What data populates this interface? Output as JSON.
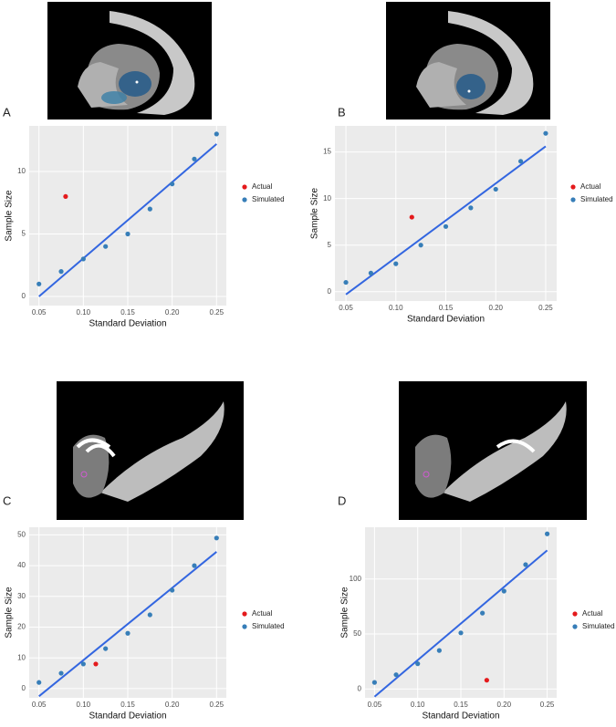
{
  "chart_data": [
    {
      "type": "scatter",
      "panel": "A",
      "x_label": "Standard Deviation",
      "y_label": "Sample Size",
      "xlim": [
        0.039,
        0.261
      ],
      "ylim": [
        -0.73,
        13.65
      ],
      "xticks": [
        0.05,
        {
          "value": 0.1,
          "label": "0.10"
        },
        0.15,
        {
          "value": 0.2,
          "label": "0.20"
        },
        0.25
      ],
      "yticks": [
        0,
        5,
        10
      ],
      "grid": true,
      "series": [
        {
          "name": "Actual",
          "color": "#e41a1c",
          "x": [
            0.08
          ],
          "values": [
            8
          ]
        },
        {
          "name": "Simulated",
          "color": "#377eb8",
          "x": [
            0.05,
            0.075,
            0.1,
            0.125,
            0.15,
            0.175,
            0.2,
            0.225,
            0.25
          ],
          "values": [
            1,
            2,
            3,
            4,
            5,
            7,
            9,
            11,
            13
          ]
        }
      ],
      "fit": {
        "color": "#3366e0",
        "x": [
          0.05,
          0.25
        ],
        "values": [
          0,
          12.2
        ]
      }
    },
    {
      "type": "scatter",
      "panel": "B",
      "x_label": "Standard Deviation",
      "y_label": "Sample Size",
      "xlim": [
        0.039,
        0.261
      ],
      "ylim": [
        -1,
        17.8
      ],
      "xticks": [
        0.05,
        {
          "value": 0.1,
          "label": "0.10"
        },
        0.15,
        {
          "value": 0.2,
          "label": "0.20"
        },
        0.25
      ],
      "yticks": [
        0,
        5,
        10,
        15
      ],
      "grid": true,
      "series": [
        {
          "name": "Actual",
          "color": "#e41a1c",
          "x": [
            0.116
          ],
          "values": [
            8
          ]
        },
        {
          "name": "Simulated",
          "color": "#377eb8",
          "x": [
            0.05,
            0.075,
            0.1,
            0.125,
            0.15,
            0.175,
            0.2,
            0.225,
            0.25
          ],
          "values": [
            1,
            2,
            3,
            5,
            7,
            9,
            11,
            14,
            17
          ]
        }
      ],
      "fit": {
        "color": "#3366e0",
        "x": [
          0.05,
          0.25
        ],
        "values": [
          -0.3,
          15.6
        ]
      }
    },
    {
      "type": "scatter",
      "panel": "C",
      "x_label": "Standard Deviation",
      "y_label": "Sample Size",
      "xlim": [
        0.039,
        0.261
      ],
      "ylim": [
        -3,
        52.5
      ],
      "xticks": [
        0.05,
        {
          "value": 0.1,
          "label": "0.10"
        },
        0.15,
        {
          "value": 0.2,
          "label": "0.20"
        },
        0.25
      ],
      "yticks": [
        0,
        10,
        20,
        30,
        40,
        50
      ],
      "grid": true,
      "series": [
        {
          "name": "Actual",
          "color": "#e41a1c",
          "x": [
            0.114
          ],
          "values": [
            8
          ]
        },
        {
          "name": "Simulated",
          "color": "#377eb8",
          "x": [
            0.05,
            0.075,
            0.1,
            0.125,
            0.15,
            0.175,
            0.2,
            0.225,
            0.25
          ],
          "values": [
            2,
            5,
            8,
            13,
            18,
            24,
            32,
            40,
            49
          ]
        }
      ],
      "fit": {
        "color": "#3366e0",
        "x": [
          0.05,
          0.25
        ],
        "values": [
          -2.5,
          44.5
        ]
      }
    },
    {
      "type": "scatter",
      "panel": "D",
      "x_label": "Standard Deviation",
      "y_label": "Sample Size",
      "xlim": [
        0.039,
        0.261
      ],
      "ylim": [
        -8,
        147
      ],
      "xticks": [
        0.05,
        {
          "value": 0.1,
          "label": "0.10"
        },
        0.15,
        {
          "value": 0.2,
          "label": "0.20"
        },
        0.25
      ],
      "yticks": [
        0,
        50,
        100
      ],
      "grid": true,
      "series": [
        {
          "name": "Actual",
          "color": "#e41a1c",
          "x": [
            0.18
          ],
          "values": [
            8
          ]
        },
        {
          "name": "Simulated",
          "color": "#377eb8",
          "x": [
            0.05,
            0.075,
            0.1,
            0.125,
            0.15,
            0.175,
            0.2,
            0.225,
            0.25
          ],
          "values": [
            6,
            13,
            23,
            35,
            51,
            69,
            89,
            113,
            141
          ]
        }
      ],
      "fit": {
        "color": "#3366e0",
        "x": [
          0.05,
          0.25
        ],
        "values": [
          -7,
          126
        ]
      }
    }
  ]
}
